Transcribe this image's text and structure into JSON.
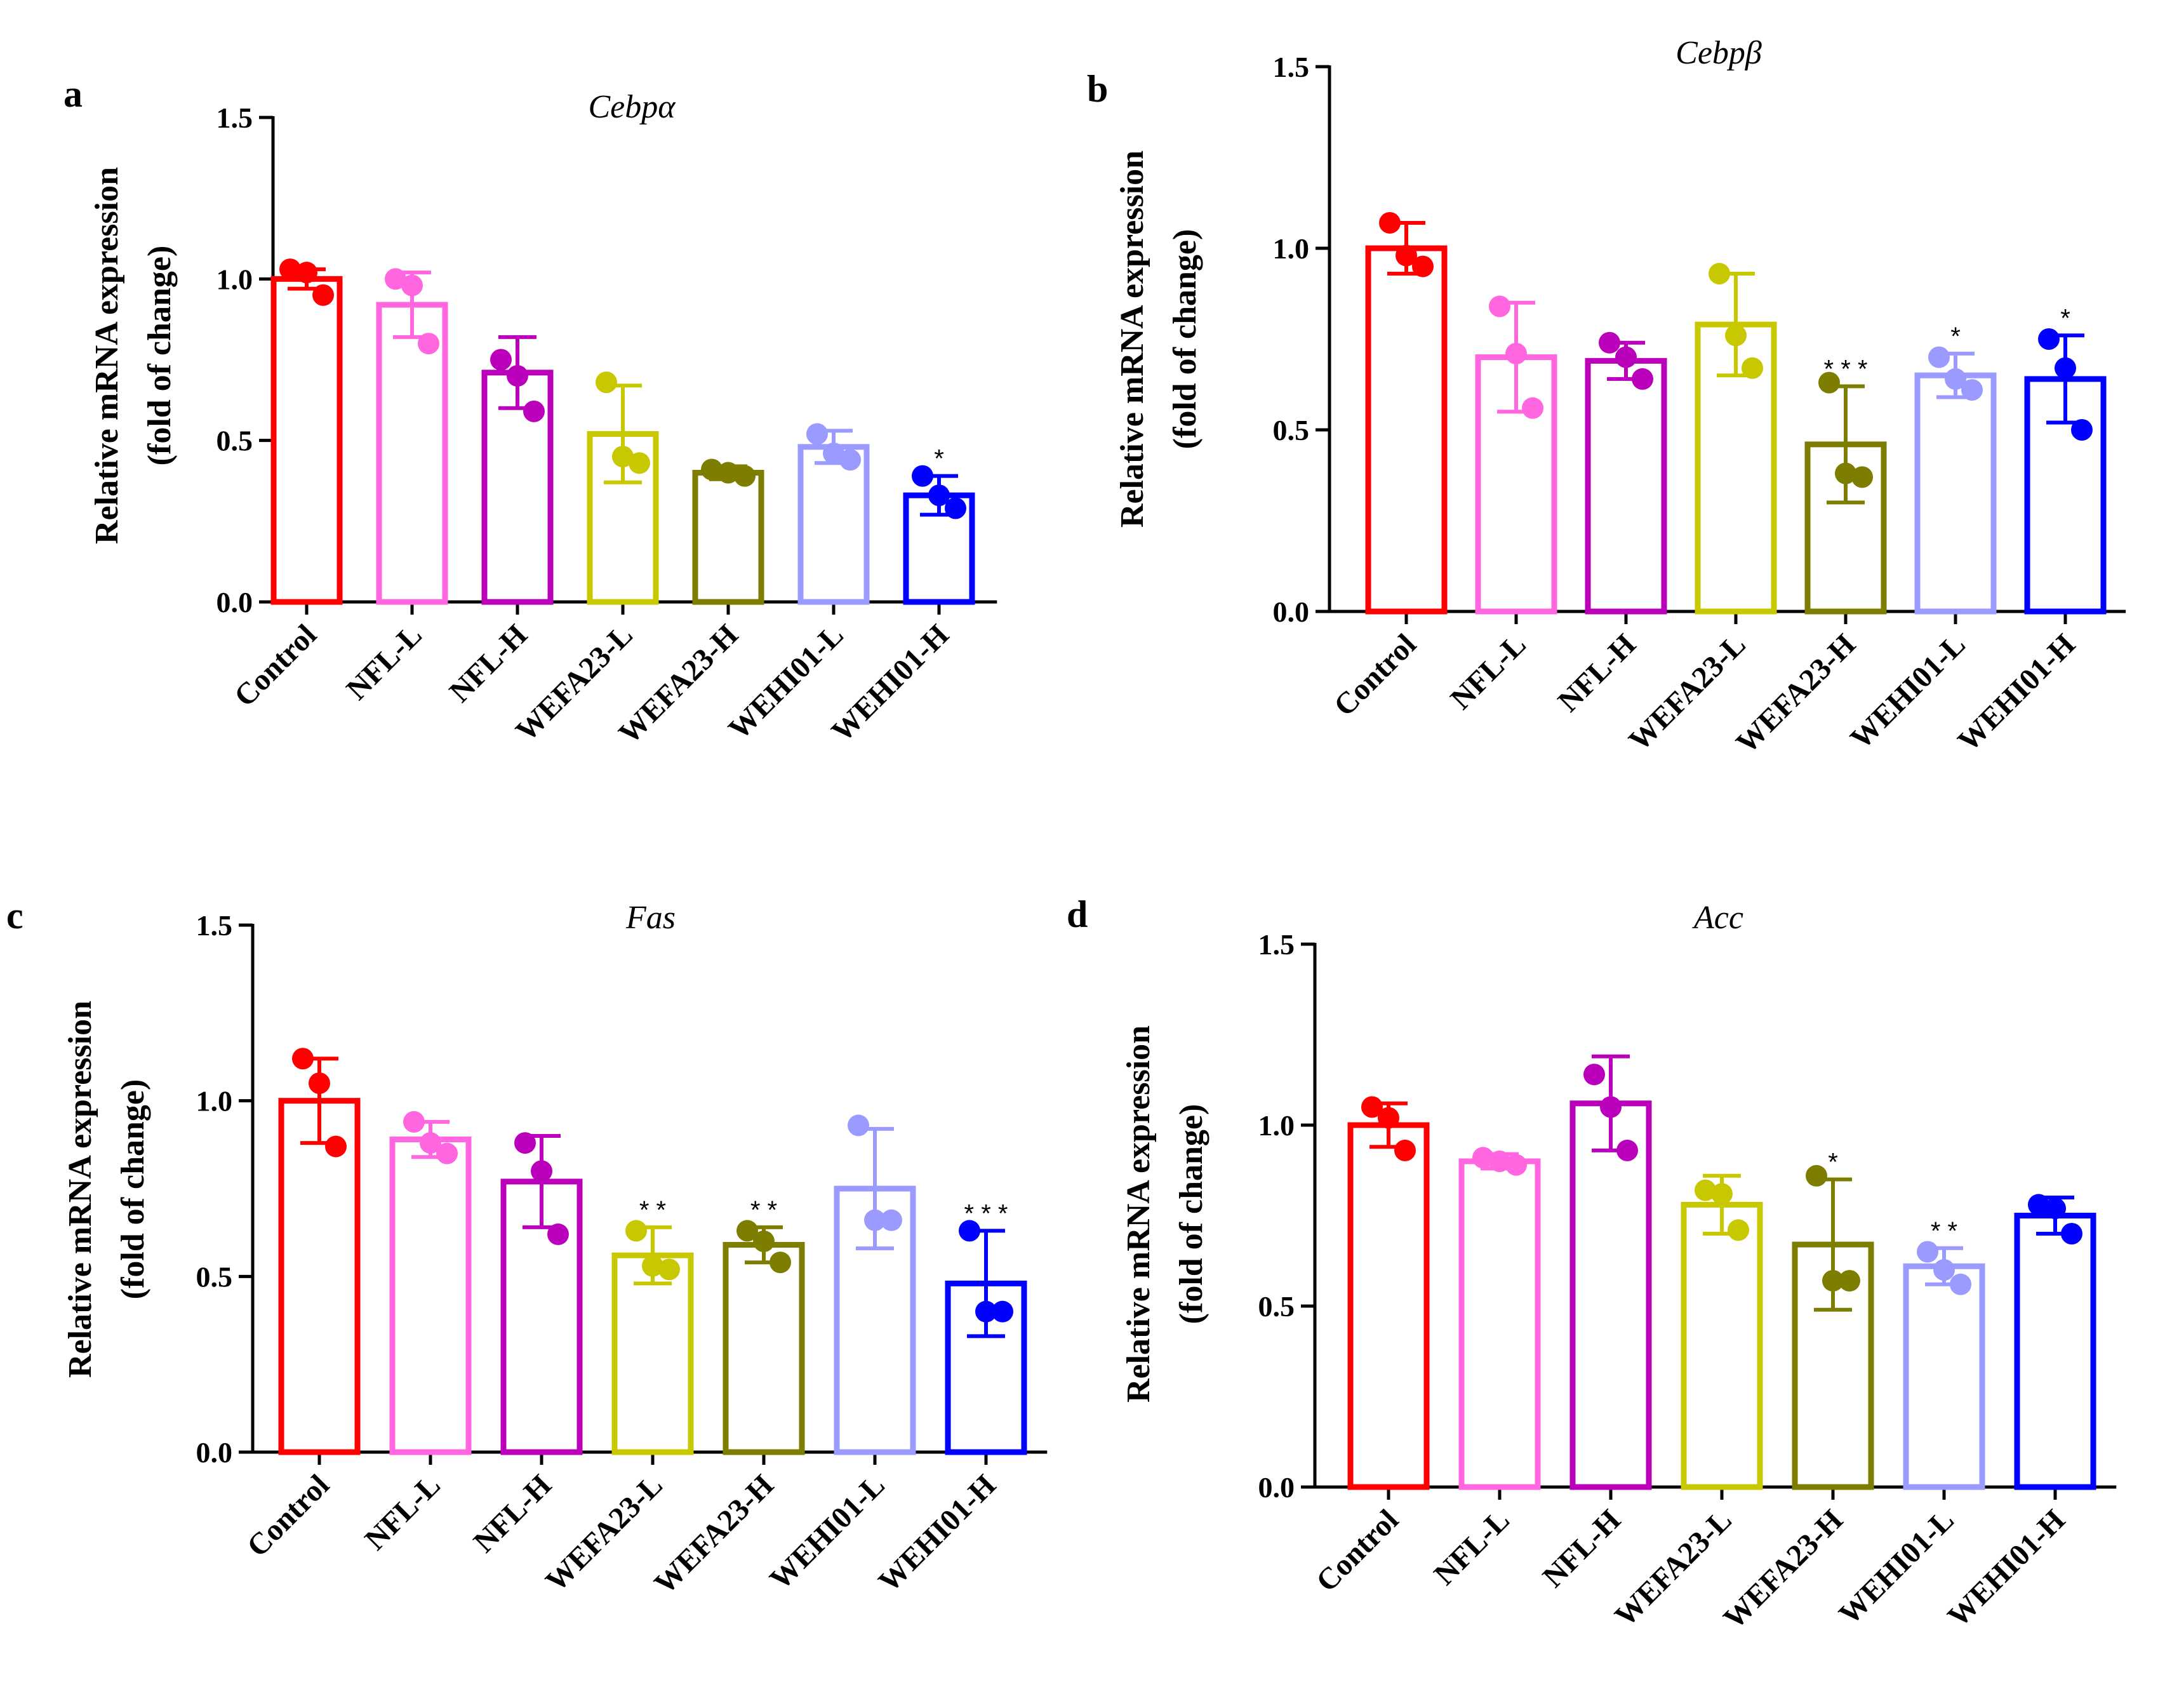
{
  "chart_data": [
    {
      "type": "bar",
      "panel": "a",
      "title": "Cebpα",
      "ylabel_line1": "Relative mRNA expression",
      "ylabel_line2": "(fold of change)",
      "ylim": [
        0,
        1.5
      ],
      "yticks": [
        "0.0",
        "0.5",
        "1.0",
        "1.5"
      ],
      "categories": [
        "Control",
        "NFL-L",
        "NFL-H",
        "WEFA23-L",
        "WEFA23-H",
        "WEHI01-L",
        "WEHI01-H"
      ],
      "colors": [
        "#ff0000",
        "#ff66e0",
        "#bb00bb",
        "#c8c800",
        "#7d7d00",
        "#9a9aff",
        "#0000ff"
      ],
      "values": [
        1.0,
        0.92,
        0.71,
        0.52,
        0.4,
        0.48,
        0.33
      ],
      "errors": [
        0.03,
        0.1,
        0.11,
        0.15,
        0.02,
        0.05,
        0.06
      ],
      "points": [
        [
          1.03,
          1.02,
          0.95
        ],
        [
          1.0,
          0.98,
          0.8
        ],
        [
          0.75,
          0.7,
          0.59
        ],
        [
          0.68,
          0.45,
          0.43
        ],
        [
          0.41,
          0.4,
          0.39
        ],
        [
          0.52,
          0.46,
          0.44
        ],
        [
          0.39,
          0.33,
          0.29
        ]
      ],
      "significance": [
        "",
        "",
        "",
        "",
        "",
        "",
        "*"
      ]
    },
    {
      "type": "bar",
      "panel": "b",
      "title": "Cebpβ",
      "ylabel_line1": "Relative mRNA expression",
      "ylabel_line2": "(fold of change)",
      "ylim": [
        0,
        1.5
      ],
      "yticks": [
        "0.0",
        "0.5",
        "1.0",
        "1.5"
      ],
      "categories": [
        "Control",
        "NFL-L",
        "NFL-H",
        "WEFA23-L",
        "WEFA23-H",
        "WEHI01-L",
        "WEHI01-H"
      ],
      "colors": [
        "#ff0000",
        "#ff66e0",
        "#bb00bb",
        "#c8c800",
        "#7d7d00",
        "#9a9aff",
        "#0000ff"
      ],
      "values": [
        1.0,
        0.7,
        0.69,
        0.79,
        0.46,
        0.65,
        0.64
      ],
      "errors": [
        0.07,
        0.15,
        0.05,
        0.14,
        0.16,
        0.06,
        0.12
      ],
      "points": [
        [
          1.07,
          0.98,
          0.95
        ],
        [
          0.84,
          0.71,
          0.56
        ],
        [
          0.74,
          0.7,
          0.64
        ],
        [
          0.93,
          0.76,
          0.67
        ],
        [
          0.63,
          0.38,
          0.37
        ],
        [
          0.7,
          0.64,
          0.61
        ],
        [
          0.75,
          0.67,
          0.5
        ]
      ],
      "significance": [
        "",
        "",
        "",
        "",
        "* * *",
        "*",
        "*"
      ]
    },
    {
      "type": "bar",
      "panel": "c",
      "title": "Fas",
      "ylabel_line1": "Relative mRNA expression",
      "ylabel_line2": "(fold of change)",
      "ylim": [
        0,
        1.5
      ],
      "yticks": [
        "0.0",
        "0.5",
        "1.0",
        "1.5"
      ],
      "categories": [
        "Control",
        "NFL-L",
        "NFL-H",
        "WEFA23-L",
        "WEFA23-H",
        "WEHI01-L",
        "WEHI01-H"
      ],
      "colors": [
        "#ff0000",
        "#ff66e0",
        "#bb00bb",
        "#c8c800",
        "#7d7d00",
        "#9a9aff",
        "#0000ff"
      ],
      "values": [
        1.0,
        0.89,
        0.77,
        0.56,
        0.59,
        0.75,
        0.48
      ],
      "errors": [
        0.12,
        0.05,
        0.13,
        0.08,
        0.05,
        0.17,
        0.15
      ],
      "points": [
        [
          1.12,
          1.05,
          0.87
        ],
        [
          0.94,
          0.88,
          0.85
        ],
        [
          0.88,
          0.8,
          0.62
        ],
        [
          0.63,
          0.53,
          0.52
        ],
        [
          0.63,
          0.6,
          0.54
        ],
        [
          0.93,
          0.66,
          0.66
        ],
        [
          0.63,
          0.4,
          0.4
        ]
      ],
      "significance": [
        "",
        "",
        "",
        "* *",
        "* *",
        "",
        "* * *"
      ]
    },
    {
      "type": "bar",
      "panel": "d",
      "title": "Acc",
      "ylabel_line1": "Relative mRNA expression",
      "ylabel_line2": "(fold of change)",
      "ylim": [
        0,
        1.5
      ],
      "yticks": [
        "0.0",
        "0.5",
        "1.0",
        "1.5"
      ],
      "categories": [
        "Control",
        "NFL-L",
        "NFL-H",
        "WEFA23-L",
        "WEFA23-H",
        "WEHI01-L",
        "WEHI01-H"
      ],
      "colors": [
        "#ff0000",
        "#ff66e0",
        "#bb00bb",
        "#c8c800",
        "#7d7d00",
        "#9a9aff",
        "#0000ff"
      ],
      "values": [
        1.0,
        0.9,
        1.06,
        0.78,
        0.67,
        0.61,
        0.75
      ],
      "errors": [
        0.06,
        0.02,
        0.13,
        0.08,
        0.18,
        0.05,
        0.05
      ],
      "points": [
        [
          1.05,
          1.02,
          0.93
        ],
        [
          0.91,
          0.9,
          0.89
        ],
        [
          1.14,
          1.05,
          0.93
        ],
        [
          0.82,
          0.81,
          0.71
        ],
        [
          0.86,
          0.57,
          0.57
        ],
        [
          0.65,
          0.6,
          0.56
        ],
        [
          0.78,
          0.77,
          0.7
        ]
      ],
      "significance": [
        "",
        "",
        "",
        "",
        "*",
        "* *",
        ""
      ]
    }
  ]
}
